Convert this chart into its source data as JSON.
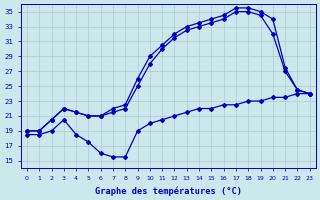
{
  "title": "Graphe des températures (°C)",
  "bg_color": "#cce8ec",
  "line_color": "#0000bb",
  "grid_color": "#aacccc",
  "xlim": [
    -0.5,
    23.5
  ],
  "ylim": [
    14,
    36
  ],
  "yticks": [
    15,
    17,
    19,
    21,
    23,
    25,
    27,
    29,
    31,
    33,
    35
  ],
  "xticks": [
    0,
    1,
    2,
    3,
    4,
    5,
    6,
    7,
    8,
    9,
    10,
    11,
    12,
    13,
    14,
    15,
    16,
    17,
    18,
    19,
    20,
    21,
    22,
    23
  ],
  "curve_min_x": [
    0,
    1,
    2,
    3,
    4,
    5,
    6,
    7,
    8,
    9,
    10,
    11,
    12,
    13,
    14,
    15,
    16,
    17,
    18,
    19,
    20,
    21,
    22,
    23
  ],
  "curve_min_y": [
    18.5,
    18.5,
    19.0,
    20.5,
    18.5,
    17.5,
    16.0,
    15.5,
    15.5,
    19.0,
    20.0,
    20.5,
    21.0,
    21.5,
    22.0,
    22.0,
    22.5,
    22.5,
    23.0,
    23.0,
    23.5,
    23.5,
    24.0,
    24.0
  ],
  "curve_max_x": [
    0,
    1,
    2,
    3,
    4,
    5,
    6,
    7,
    8,
    9,
    10,
    11,
    12,
    13,
    14,
    15,
    16,
    17,
    18,
    19,
    20,
    21,
    22,
    23
  ],
  "curve_max_y": [
    19.0,
    19.0,
    20.5,
    22.0,
    21.5,
    21.0,
    21.0,
    22.0,
    22.5,
    26.0,
    29.0,
    30.5,
    32.0,
    33.0,
    33.5,
    34.0,
    34.5,
    35.5,
    35.5,
    35.0,
    34.0,
    27.5,
    24.5,
    24.0
  ],
  "curve_mid_x": [
    0,
    1,
    2,
    3,
    4,
    5,
    6,
    7,
    8,
    9,
    10,
    11,
    12,
    13,
    14,
    15,
    16,
    17,
    18,
    19,
    20,
    21,
    22,
    23
  ],
  "curve_mid_y": [
    19.0,
    19.0,
    20.5,
    22.0,
    21.5,
    21.0,
    21.0,
    21.5,
    22.0,
    25.0,
    28.0,
    30.0,
    31.5,
    32.5,
    33.0,
    33.5,
    34.0,
    35.0,
    35.0,
    34.5,
    32.0,
    27.0,
    24.5,
    24.0
  ]
}
